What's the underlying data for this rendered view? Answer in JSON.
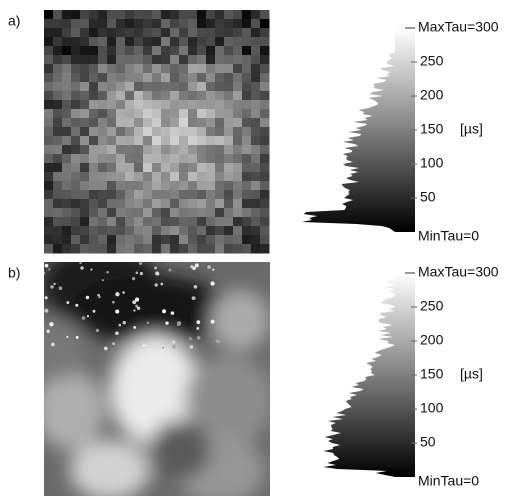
{
  "panels": [
    {
      "label": "a)",
      "max_label": "MaxTau=300",
      "min_label": "MinTau=0",
      "ticks": [
        "50",
        "100",
        "150",
        "200",
        "250"
      ],
      "unit": "[µs]"
    },
    {
      "label": "b)",
      "max_label": "MaxTau=300",
      "min_label": "MinTau=0",
      "ticks": [
        "50",
        "100",
        "150",
        "200",
        "250"
      ],
      "unit": "[µs]"
    }
  ]
}
